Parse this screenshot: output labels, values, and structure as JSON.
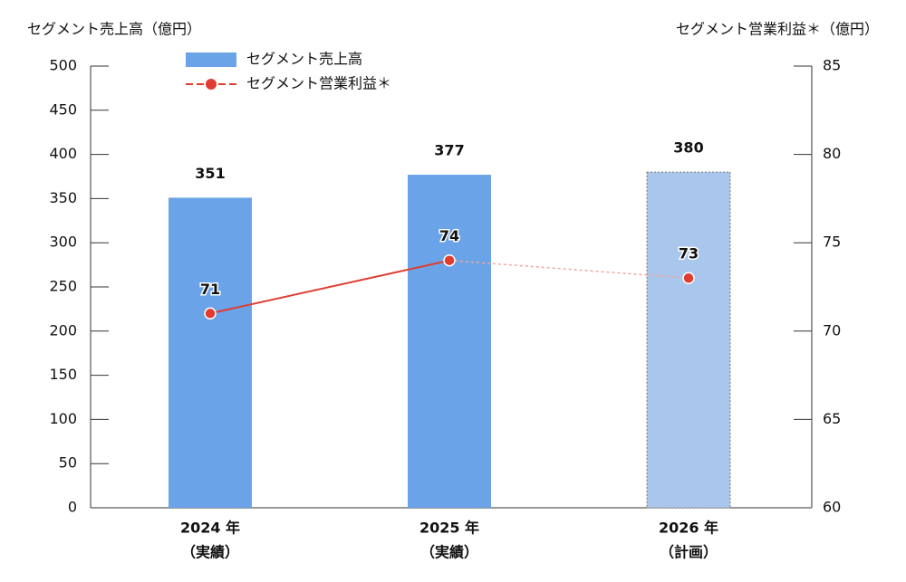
{
  "chart_data": {
    "type": "bar-line",
    "y_title": "セグメント売上高（億円）",
    "y2_title": "セグメント営業利益＊（億円）",
    "categories": [
      "2024 年",
      "2025 年",
      "2026 年"
    ],
    "category_notes": [
      "（実績）",
      "（実績）",
      "（計画）"
    ],
    "ylim": [
      0,
      500
    ],
    "yticks": [
      0,
      50,
      100,
      150,
      200,
      250,
      300,
      350,
      400,
      450,
      500
    ],
    "y2lim": [
      60,
      85
    ],
    "y2ticks": [
      60,
      65,
      70,
      75,
      80,
      85
    ],
    "series": [
      {
        "name": "セグメント売上高",
        "type": "bar",
        "color": "#6aa3e8",
        "colors": [
          "#6aa3e8",
          "#6aa3e8",
          "#a9c6ec"
        ],
        "values": [
          351,
          377,
          380
        ]
      },
      {
        "name": "セグメント営業利益＊",
        "type": "line",
        "axis": "y2",
        "color": "#e03c31",
        "segment_styles": [
          "solid",
          "dashed"
        ],
        "values": [
          71,
          74,
          73
        ]
      }
    ]
  }
}
